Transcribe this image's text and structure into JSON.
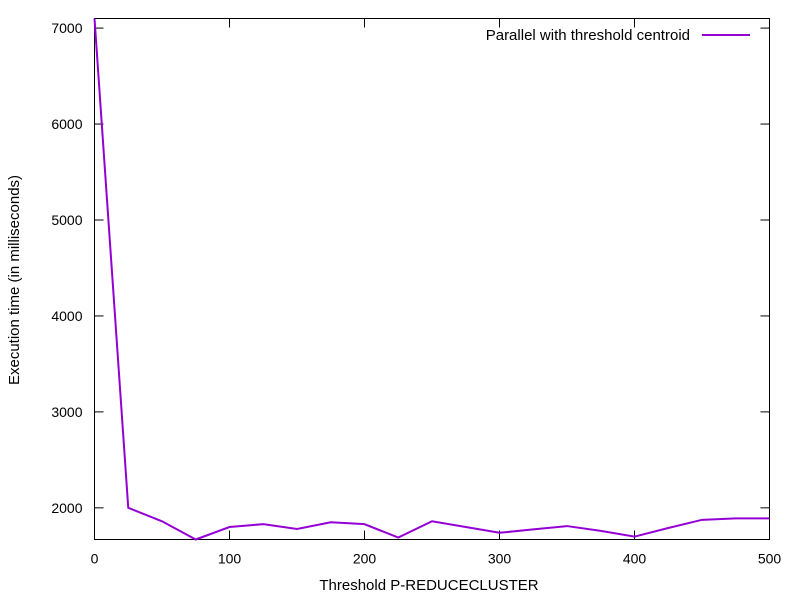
{
  "chart_data": {
    "type": "line",
    "title": "",
    "xlabel": "Threshold P-REDUCECLUSTER",
    "ylabel": "Execution time (in milliseconds)",
    "xlim": [
      0,
      500
    ],
    "ylim": [
      1670,
      7100
    ],
    "x_ticks": [
      0,
      100,
      200,
      300,
      400,
      500
    ],
    "y_ticks": [
      2000,
      3000,
      4000,
      5000,
      6000,
      7000
    ],
    "x_tick_labels": [
      "0",
      "100",
      "200",
      "300",
      "400",
      "500"
    ],
    "y_tick_labels": [
      "2000",
      "3000",
      "4000",
      "5000",
      "6000",
      "7000"
    ],
    "grid": false,
    "legend_position": "top-right",
    "series": [
      {
        "name": "Parallel with threshold centroid",
        "color": "#9400d3",
        "x": [
          0,
          25,
          50,
          75,
          100,
          125,
          150,
          175,
          200,
          225,
          250,
          275,
          300,
          325,
          350,
          375,
          400,
          425,
          450,
          475,
          500
        ],
        "y": [
          7100,
          2000,
          1860,
          1670,
          1800,
          1830,
          1780,
          1850,
          1830,
          1690,
          1860,
          1800,
          1740,
          1775,
          1810,
          1760,
          1700,
          1790,
          1875,
          1890,
          1890
        ]
      }
    ]
  }
}
